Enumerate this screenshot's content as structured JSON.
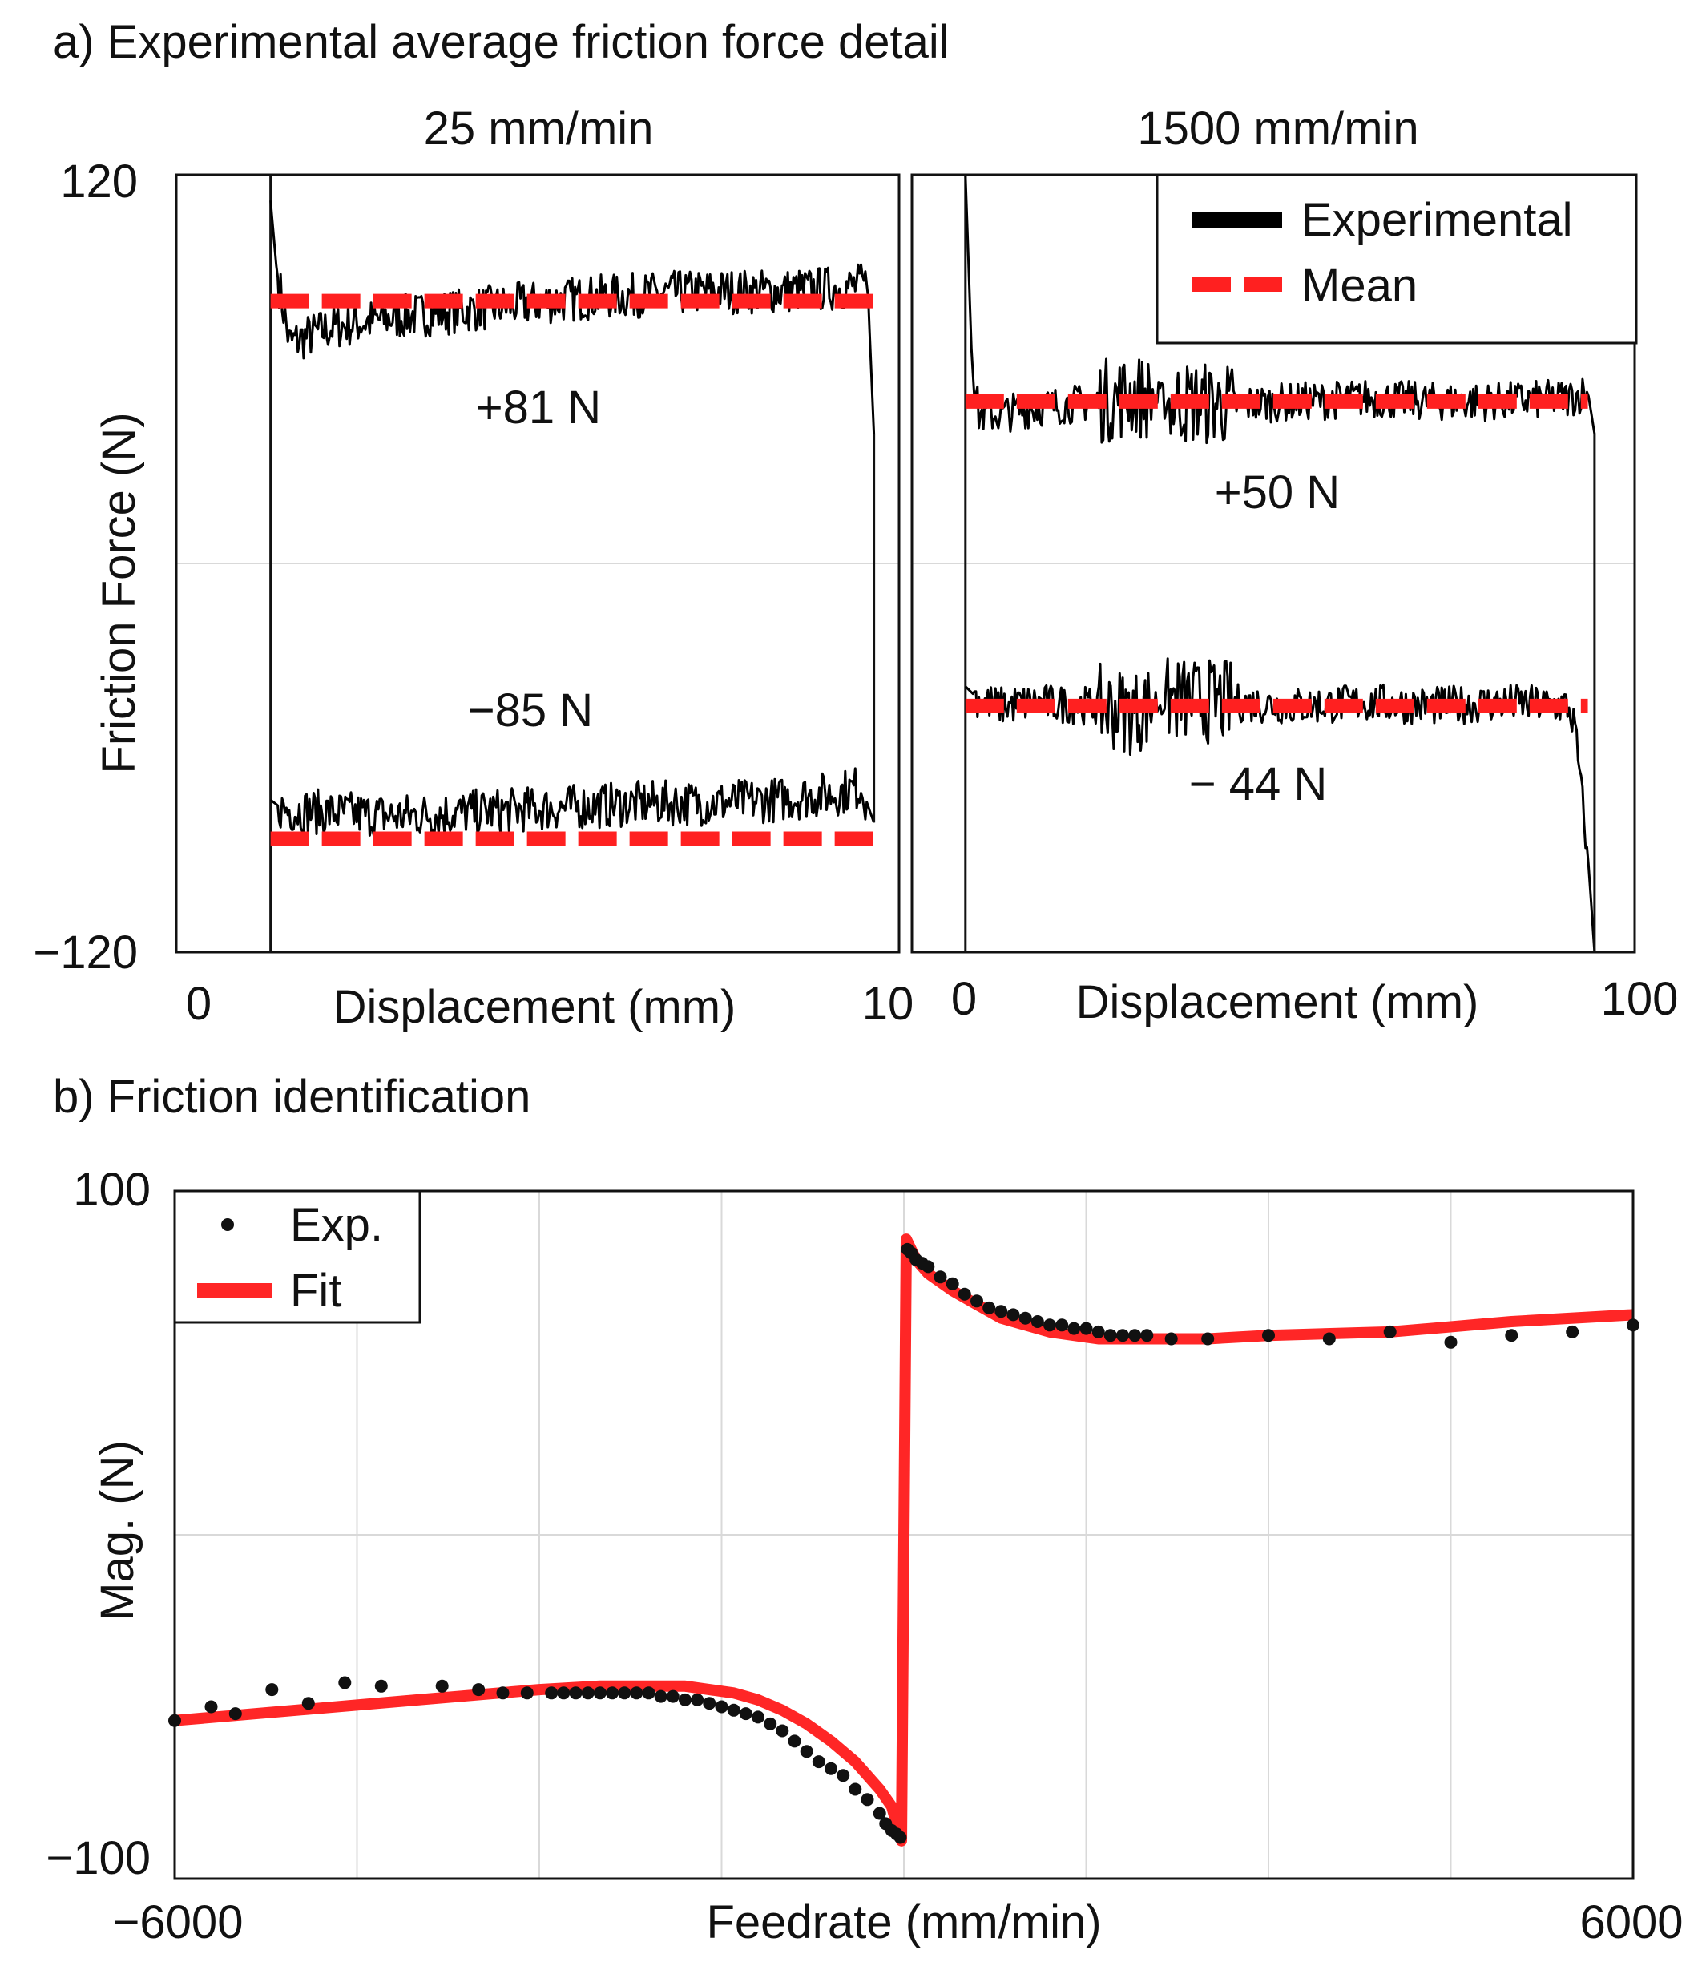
{
  "panel_a": {
    "title": "a) Experimental average friction force detail",
    "ylabel": "Friction Force (N)",
    "y_ticks": [
      "120",
      "−120"
    ],
    "legend": {
      "experimental": "Experimental",
      "mean": "Mean"
    },
    "left": {
      "subtitle": "25 mm/min",
      "xlabel": "Displacement (mm)",
      "x_ticks": [
        "0",
        "10"
      ],
      "pos_label": "+81 N",
      "neg_label": "−85 N"
    },
    "right": {
      "subtitle": "1500 mm/min",
      "xlabel": "Displacement (mm)",
      "x_ticks": [
        "0",
        "100"
      ],
      "pos_label": "+50 N",
      "neg_label": "− 44 N"
    }
  },
  "panel_b": {
    "title": "b) Friction identification",
    "ylabel": "Mag. (N)",
    "xlabel": "Feedrate (mm/min)",
    "x_ticks": [
      "−6000",
      "6000"
    ],
    "y_ticks": [
      "100",
      "−100"
    ],
    "legend": {
      "exp": "Exp.",
      "fit": "Fit"
    }
  },
  "colors": {
    "experimental": "#000000",
    "mean": "#ff2020",
    "fit": "#ff2626",
    "points": "#111111",
    "grid": "#d9d9d9"
  },
  "chart_data": [
    {
      "type": "line",
      "subtitle": "25 mm/min",
      "xlabel": "Displacement (mm)",
      "ylabel": "Friction Force (N)",
      "xlim": [
        -1.5,
        10
      ],
      "ylim": [
        -120,
        120
      ],
      "grid": true,
      "series": [
        {
          "name": "Experimental",
          "segment": "positive",
          "x": [
            0,
            0.1,
            0.3,
            1,
            2,
            3,
            4,
            5,
            6,
            7,
            8,
            9,
            9.5,
            9.6
          ],
          "y": [
            112,
            90,
            68,
            73,
            76,
            78,
            80,
            82,
            83,
            84,
            84,
            85,
            86,
            40
          ]
        },
        {
          "name": "Experimental",
          "segment": "negative",
          "x": [
            0,
            0.2,
            1,
            2,
            3,
            4,
            5,
            6,
            7,
            8,
            9,
            9.4,
            9.6
          ],
          "y": [
            -73,
            -76,
            -77,
            -78,
            -77,
            -76,
            -75,
            -74,
            -74,
            -73,
            -71,
            -69,
            -80
          ]
        },
        {
          "name": "Mean",
          "segment": "positive",
          "x": [
            0,
            9.6
          ],
          "y": [
            81,
            81
          ]
        },
        {
          "name": "Mean",
          "segment": "negative",
          "x": [
            0,
            9.6
          ],
          "y": [
            -85,
            -85
          ]
        }
      ],
      "annotations": [
        "+81 N",
        "−85 N"
      ]
    },
    {
      "type": "line",
      "subtitle": "1500 mm/min",
      "xlabel": "Displacement (mm)",
      "ylabel": "Friction Force (N)",
      "xlim": [
        -8,
        100
      ],
      "ylim": [
        -120,
        120
      ],
      "grid": true,
      "legend": "top-right",
      "series": [
        {
          "name": "Experimental",
          "segment": "positive",
          "x": [
            0,
            1,
            2,
            5,
            10,
            20,
            25,
            30,
            40,
            50,
            60,
            70,
            80,
            90,
            93,
            94
          ],
          "y": [
            120,
            60,
            46,
            46,
            48,
            50,
            52,
            50,
            49,
            50,
            51,
            50,
            50,
            51,
            53,
            40
          ]
        },
        {
          "name": "Experimental",
          "segment": "negative",
          "x": [
            0,
            2,
            5,
            10,
            20,
            25,
            30,
            40,
            50,
            60,
            70,
            80,
            90,
            91,
            93,
            94
          ],
          "y": [
            -38,
            -42,
            -44,
            -43,
            -44,
            -46,
            -42,
            -43,
            -44,
            -43,
            -44,
            -43,
            -44,
            -50,
            -90,
            -120
          ]
        },
        {
          "name": "Mean",
          "segment": "positive",
          "x": [
            0,
            93
          ],
          "y": [
            50,
            50
          ]
        },
        {
          "name": "Mean",
          "segment": "negative",
          "x": [
            0,
            93
          ],
          "y": [
            -44,
            -44
          ]
        }
      ],
      "annotations": [
        "+50 N",
        "− 44 N"
      ]
    },
    {
      "type": "scatter",
      "xlabel": "Feedrate (mm/min)",
      "ylabel": "Mag. (N)",
      "xlim": [
        -6000,
        6000
      ],
      "ylim": [
        -100,
        100
      ],
      "grid": true,
      "legend": "top-left",
      "series": [
        {
          "name": "Exp.",
          "x": [
            -6000,
            -5700,
            -5500,
            -5200,
            -4900,
            -4600,
            -4300,
            -3800,
            -3500,
            -3300,
            -3100,
            -2900,
            -2800,
            -2700,
            -2600,
            -2500,
            -2400,
            -2300,
            -2200,
            -2100,
            -2000,
            -1900,
            -1800,
            -1700,
            -1600,
            -1500,
            -1400,
            -1300,
            -1200,
            -1100,
            -1000,
            -900,
            -800,
            -700,
            -600,
            -500,
            -400,
            -300,
            -200,
            -150,
            -100,
            -60,
            -30,
            30,
            60,
            100,
            150,
            200,
            300,
            400,
            500,
            600,
            700,
            800,
            900,
            1000,
            1100,
            1200,
            1300,
            1400,
            1500,
            1600,
            1700,
            1800,
            1900,
            2000,
            2200,
            2500,
            3000,
            3500,
            4000,
            4500,
            5000,
            5500,
            6000
          ],
          "y": [
            -54,
            -50,
            -52,
            -45,
            -49,
            -43,
            -44,
            -44,
            -45,
            -46,
            -46,
            -46,
            -46,
            -46,
            -46,
            -46,
            -46,
            -46,
            -46,
            -46,
            -47,
            -47,
            -48,
            -48,
            -49,
            -50,
            -51,
            -52,
            -53,
            -55,
            -57,
            -60,
            -63,
            -66,
            -68,
            -70,
            -74,
            -77,
            -81,
            -84,
            -86,
            -87,
            -88,
            83,
            82,
            80,
            79,
            78,
            75,
            73,
            70,
            68,
            66,
            65,
            64,
            63,
            62,
            61,
            61,
            60,
            60,
            59,
            58,
            58,
            58,
            58,
            57,
            57,
            58,
            57,
            59,
            56,
            58,
            59,
            61
          ]
        },
        {
          "name": "Fit",
          "x": [
            -6000,
            -5000,
            -4000,
            -3000,
            -2500,
            -2000,
            -1800,
            -1600,
            -1400,
            -1200,
            -1000,
            -800,
            -600,
            -400,
            -200,
            -100,
            -20,
            20,
            100,
            200,
            400,
            600,
            800,
            1000,
            1200,
            1400,
            1600,
            1800,
            2000,
            2500,
            3000,
            4000,
            5000,
            6000
          ],
          "y": [
            -54,
            -51,
            -48,
            -45,
            -44,
            -44,
            -44,
            -45,
            -46,
            -48,
            -51,
            -55,
            -60,
            -66,
            -74,
            -79,
            -89,
            86,
            80,
            76,
            71,
            67,
            63,
            61,
            59,
            58,
            57,
            57,
            57,
            57,
            58,
            59,
            62,
            64
          ]
        }
      ]
    }
  ]
}
